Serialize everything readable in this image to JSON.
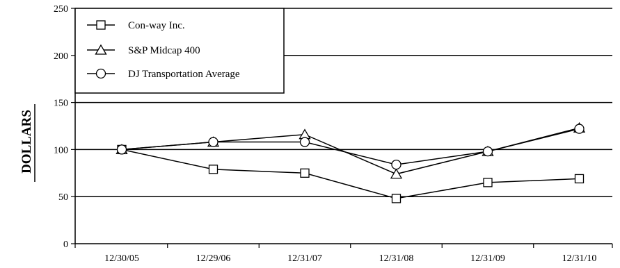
{
  "chart_data": {
    "type": "line",
    "title": "",
    "xlabel": "",
    "ylabel": "DOLLARS",
    "categories": [
      "12/30/05",
      "12/29/06",
      "12/31/07",
      "12/31/08",
      "12/31/09",
      "12/31/10"
    ],
    "ylim": [
      0,
      250
    ],
    "yticks": [
      0,
      50,
      100,
      150,
      200,
      250
    ],
    "grid": "horizontal",
    "legend_position": "top-left",
    "series": [
      {
        "name": "Con-way Inc.",
        "marker": "square",
        "values": [
          100,
          79,
          75,
          48,
          65,
          69
        ]
      },
      {
        "name": "S&P Midcap 400",
        "marker": "triangle",
        "values": [
          100,
          108,
          116,
          74,
          98,
          123
        ]
      },
      {
        "name": "DJ Transportation Average",
        "marker": "circle",
        "values": [
          100,
          108,
          108,
          84,
          98,
          122
        ]
      }
    ],
    "colors": {
      "line": "#000000",
      "marker_fill": "#ffffff",
      "background": "#ffffff"
    }
  }
}
